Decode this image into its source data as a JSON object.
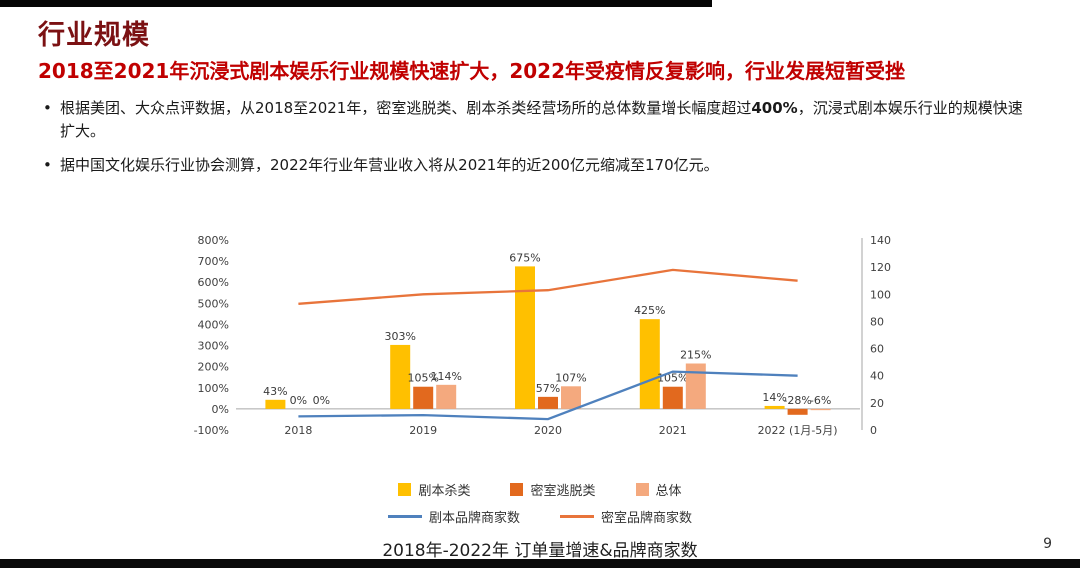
{
  "header": {
    "title": "行业规模",
    "subtitle": "2018至2021年沉浸式剧本娱乐行业规模快速扩大，2022年受疫情反复影响，行业发展短暂受挫"
  },
  "bullets": [
    {
      "pre": "根据美团、大众点评数据，从2018至2021年，密室逃脱类、剧本杀类经营场所的总体数量增长幅度超过",
      "bold": "400%",
      "post": "，沉浸式剧本娱乐行业的规模快速扩大。"
    },
    {
      "pre": "据中国文化娱乐行业协会测算，2022年行业年营业收入将从2021年的近200亿元缩减至170亿元。",
      "bold": "",
      "post": ""
    }
  ],
  "colors": {
    "title": "#7b1113",
    "subtitle": "#c00000",
    "body_text": "#1a1a1a"
  },
  "footer": {
    "page_number": "9"
  },
  "chart_data": {
    "type": "bar",
    "secondary_type": "line",
    "title": "2018年-2022年 订单量增速&品牌商家数",
    "categories": [
      "2018",
      "2019",
      "2020",
      "2021",
      "2022 (1月-5月)"
    ],
    "bar_series": [
      {
        "name": "剧本杀类",
        "color": "#FFC000",
        "axis": "left",
        "values": [
          43,
          303,
          675,
          425,
          14
        ],
        "labels": [
          "43%",
          "303%",
          "675%",
          "425%",
          "14%"
        ]
      },
      {
        "name": "密室逃脱类",
        "color": "#E2691E",
        "axis": "left",
        "values": [
          0,
          105,
          57,
          105,
          -28
        ],
        "labels": [
          "0%",
          "105%",
          "57%",
          "105%",
          "-28%"
        ]
      },
      {
        "name": "总体",
        "color": "#F4A97E",
        "axis": "left",
        "values": [
          0,
          114,
          107,
          215,
          -6
        ],
        "labels": [
          "0%",
          "114%",
          "107%",
          "215%",
          "-6%"
        ]
      }
    ],
    "line_series": [
      {
        "name": "剧本品牌商家数",
        "color": "#4F81BD",
        "axis": "right",
        "values": [
          10,
          11,
          8,
          43,
          40
        ]
      },
      {
        "name": "密室品牌商家数",
        "color": "#E8743B",
        "axis": "right",
        "values": [
          93,
          100,
          103,
          118,
          110
        ]
      }
    ],
    "left_axis": {
      "min": -100,
      "max": 800,
      "step": 100,
      "format": "percent"
    },
    "right_axis": {
      "min": 0,
      "max": 140,
      "step": 20
    },
    "legend_position": "bottom",
    "grid": false
  }
}
